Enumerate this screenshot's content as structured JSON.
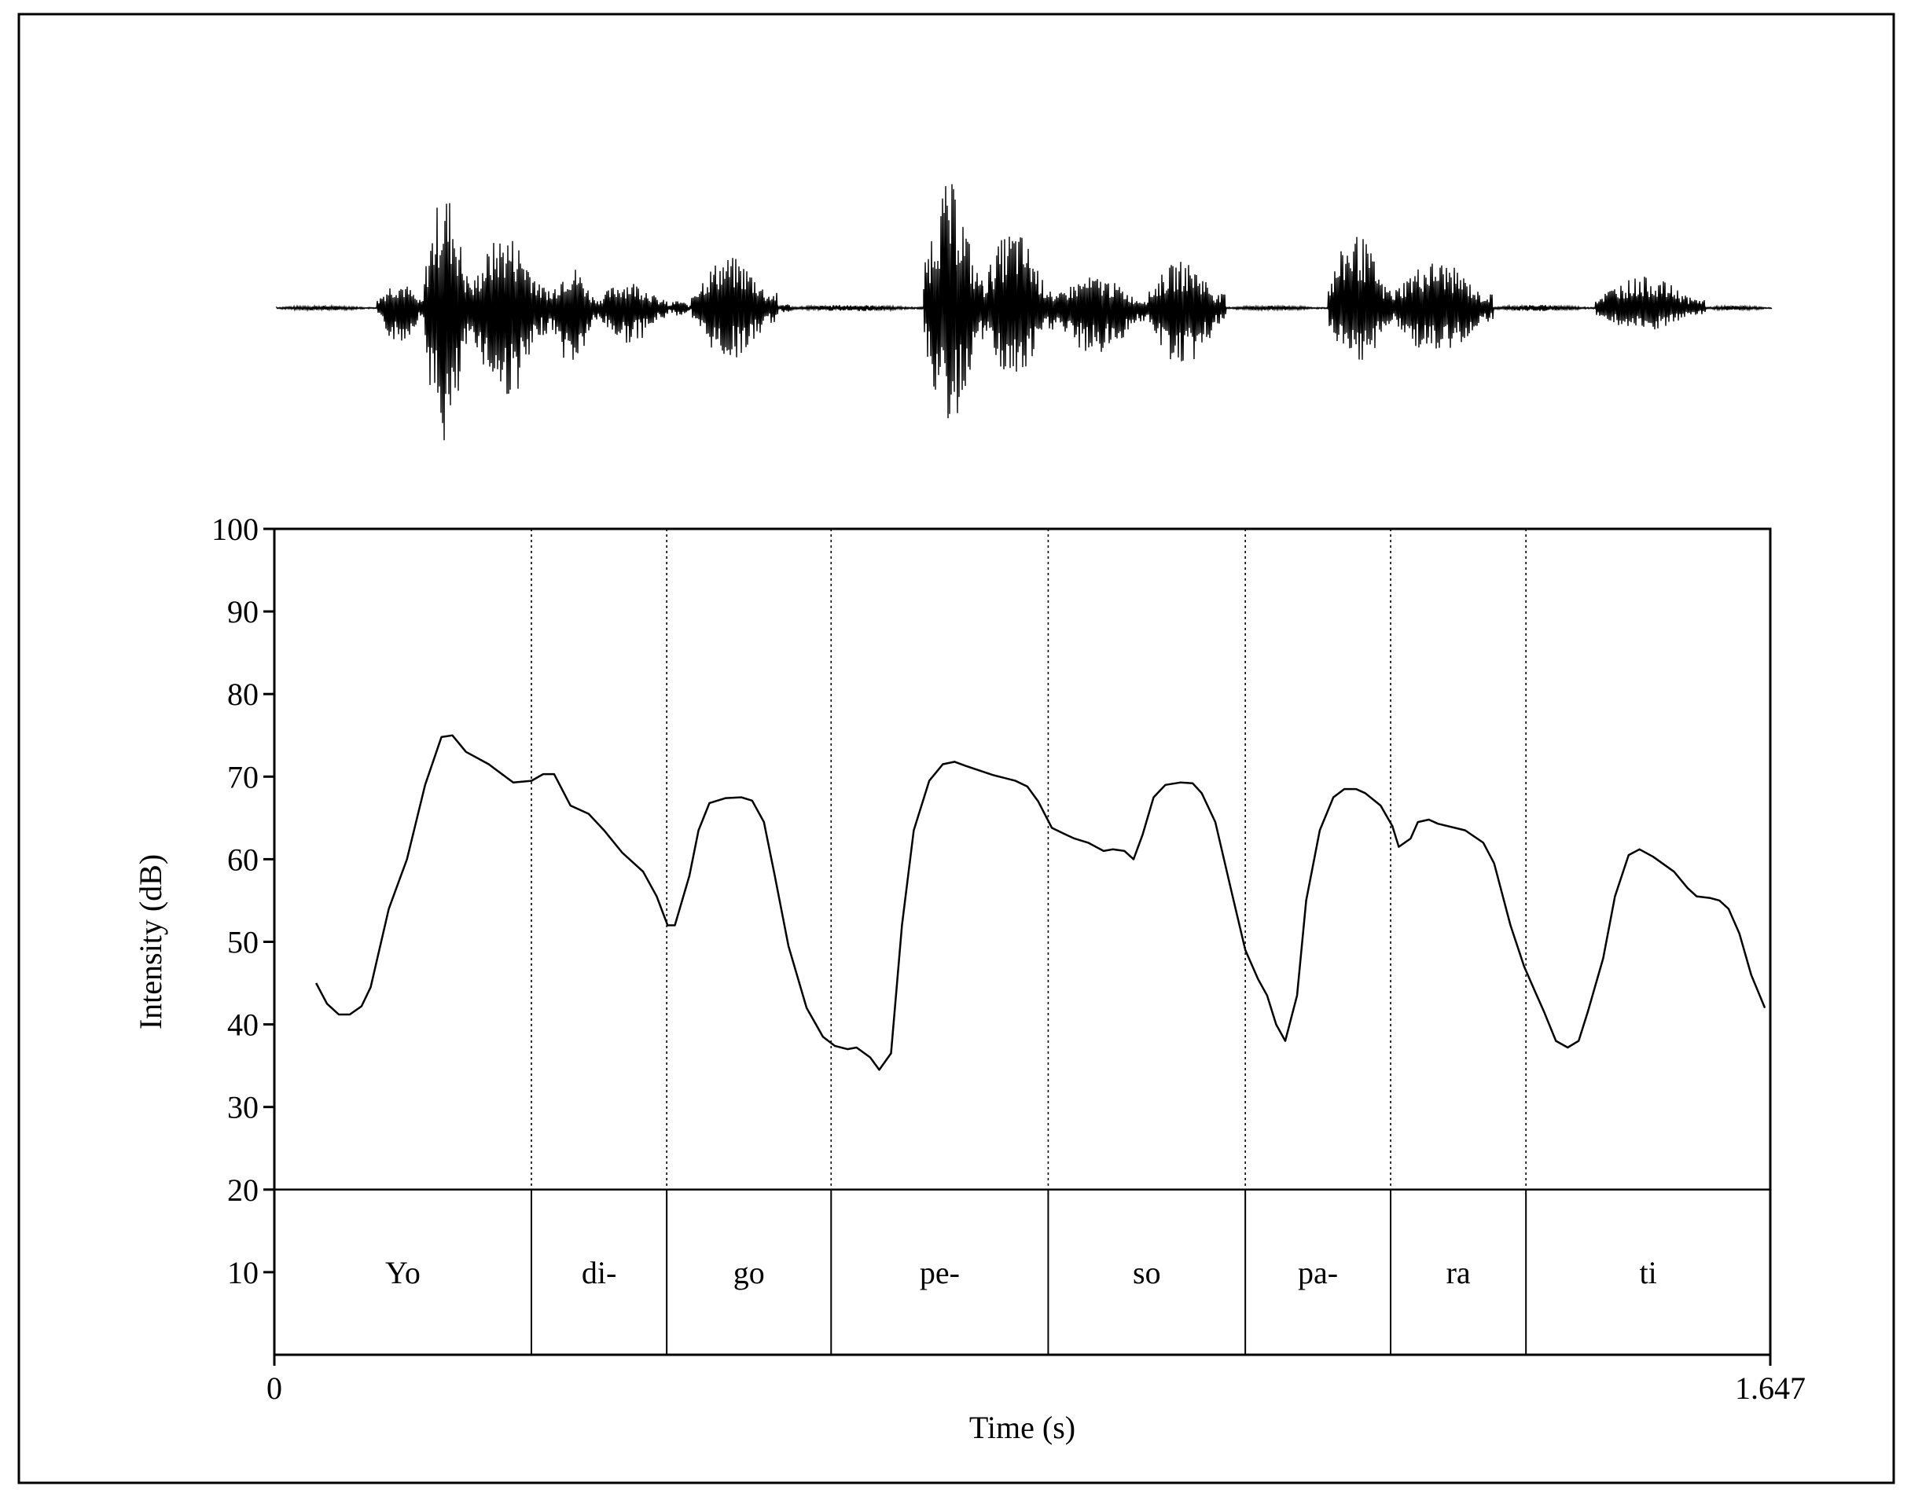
{
  "chart_data": {
    "type": "line",
    "xlabel": "Time (s)",
    "ylabel": "Intensity (dB)",
    "xlim": [
      0,
      1.647
    ],
    "ylim": [
      0,
      100
    ],
    "x_tick_labels": [
      "0",
      "1.647"
    ],
    "y_ticks": [
      10,
      20,
      30,
      40,
      50,
      60,
      70,
      80,
      90,
      100
    ],
    "grid": false,
    "line_color": "#000000",
    "syllable_tier_top": 20,
    "syllables": [
      {
        "label": "Yo",
        "start": 0.0,
        "end": 0.283
      },
      {
        "label": "di-",
        "start": 0.283,
        "end": 0.432
      },
      {
        "label": "go",
        "start": 0.432,
        "end": 0.613
      },
      {
        "label": "pe-",
        "start": 0.613,
        "end": 0.852
      },
      {
        "label": "so",
        "start": 0.852,
        "end": 1.069
      },
      {
        "label": "pa-",
        "start": 1.069,
        "end": 1.229
      },
      {
        "label": "ra",
        "start": 1.229,
        "end": 1.378
      },
      {
        "label": "ti",
        "start": 1.378,
        "end": 1.647
      }
    ],
    "series": [
      {
        "values": [
          [
            0.046,
            45
          ],
          [
            0.058,
            42.5
          ],
          [
            0.071,
            41.2
          ],
          [
            0.083,
            41.2
          ],
          [
            0.096,
            42.2
          ],
          [
            0.106,
            44.5
          ],
          [
            0.126,
            54
          ],
          [
            0.146,
            60
          ],
          [
            0.166,
            69
          ],
          [
            0.184,
            74.8
          ],
          [
            0.196,
            75
          ],
          [
            0.211,
            73
          ],
          [
            0.236,
            71.5
          ],
          [
            0.263,
            69.3
          ],
          [
            0.283,
            69.5
          ],
          [
            0.296,
            70.3
          ],
          [
            0.308,
            70.3
          ],
          [
            0.326,
            66.5
          ],
          [
            0.346,
            65.5
          ],
          [
            0.363,
            63.5
          ],
          [
            0.383,
            60.8
          ],
          [
            0.406,
            58.5
          ],
          [
            0.421,
            55.5
          ],
          [
            0.433,
            52
          ],
          [
            0.441,
            52
          ],
          [
            0.457,
            58
          ],
          [
            0.467,
            63.5
          ],
          [
            0.479,
            66.8
          ],
          [
            0.497,
            67.4
          ],
          [
            0.514,
            67.5
          ],
          [
            0.526,
            67.1
          ],
          [
            0.539,
            64.5
          ],
          [
            0.551,
            58
          ],
          [
            0.566,
            49.5
          ],
          [
            0.586,
            42
          ],
          [
            0.604,
            38.5
          ],
          [
            0.617,
            37.4
          ],
          [
            0.631,
            37
          ],
          [
            0.641,
            37.2
          ],
          [
            0.656,
            36
          ],
          [
            0.666,
            34.5
          ],
          [
            0.679,
            36.5
          ],
          [
            0.691,
            52
          ],
          [
            0.704,
            63.5
          ],
          [
            0.721,
            69.5
          ],
          [
            0.736,
            71.5
          ],
          [
            0.749,
            71.8
          ],
          [
            0.761,
            71.3
          ],
          [
            0.791,
            70.2
          ],
          [
            0.816,
            69.5
          ],
          [
            0.829,
            68.8
          ],
          [
            0.841,
            67
          ],
          [
            0.856,
            63.8
          ],
          [
            0.871,
            63
          ],
          [
            0.881,
            62.5
          ],
          [
            0.896,
            62
          ],
          [
            0.913,
            61
          ],
          [
            0.923,
            61.2
          ],
          [
            0.936,
            61
          ],
          [
            0.946,
            60
          ],
          [
            0.956,
            63
          ],
          [
            0.968,
            67.5
          ],
          [
            0.981,
            69
          ],
          [
            0.998,
            69.3
          ],
          [
            1.011,
            69.2
          ],
          [
            1.021,
            68
          ],
          [
            1.036,
            64.5
          ],
          [
            1.054,
            56
          ],
          [
            1.069,
            49
          ],
          [
            1.083,
            45.5
          ],
          [
            1.093,
            43.5
          ],
          [
            1.103,
            40
          ],
          [
            1.113,
            38
          ],
          [
            1.126,
            43.5
          ],
          [
            1.136,
            55
          ],
          [
            1.151,
            63.5
          ],
          [
            1.166,
            67.5
          ],
          [
            1.178,
            68.5
          ],
          [
            1.191,
            68.5
          ],
          [
            1.201,
            68
          ],
          [
            1.218,
            66.5
          ],
          [
            1.231,
            64
          ],
          [
            1.238,
            61.5
          ],
          [
            1.251,
            62.5
          ],
          [
            1.259,
            64.5
          ],
          [
            1.271,
            64.8
          ],
          [
            1.281,
            64.3
          ],
          [
            1.311,
            63.5
          ],
          [
            1.331,
            62
          ],
          [
            1.343,
            59.5
          ],
          [
            1.361,
            52
          ],
          [
            1.376,
            47
          ],
          [
            1.388,
            44
          ],
          [
            1.398,
            41.5
          ],
          [
            1.411,
            38
          ],
          [
            1.424,
            37.2
          ],
          [
            1.436,
            38
          ],
          [
            1.446,
            41.5
          ],
          [
            1.463,
            48
          ],
          [
            1.476,
            55.5
          ],
          [
            1.491,
            60.5
          ],
          [
            1.503,
            61.2
          ],
          [
            1.518,
            60.3
          ],
          [
            1.541,
            58.5
          ],
          [
            1.556,
            56.5
          ],
          [
            1.566,
            55.5
          ],
          [
            1.581,
            55.3
          ],
          [
            1.591,
            55
          ],
          [
            1.601,
            54
          ],
          [
            1.613,
            51
          ],
          [
            1.626,
            46
          ],
          [
            1.641,
            42
          ]
        ]
      }
    ]
  }
}
